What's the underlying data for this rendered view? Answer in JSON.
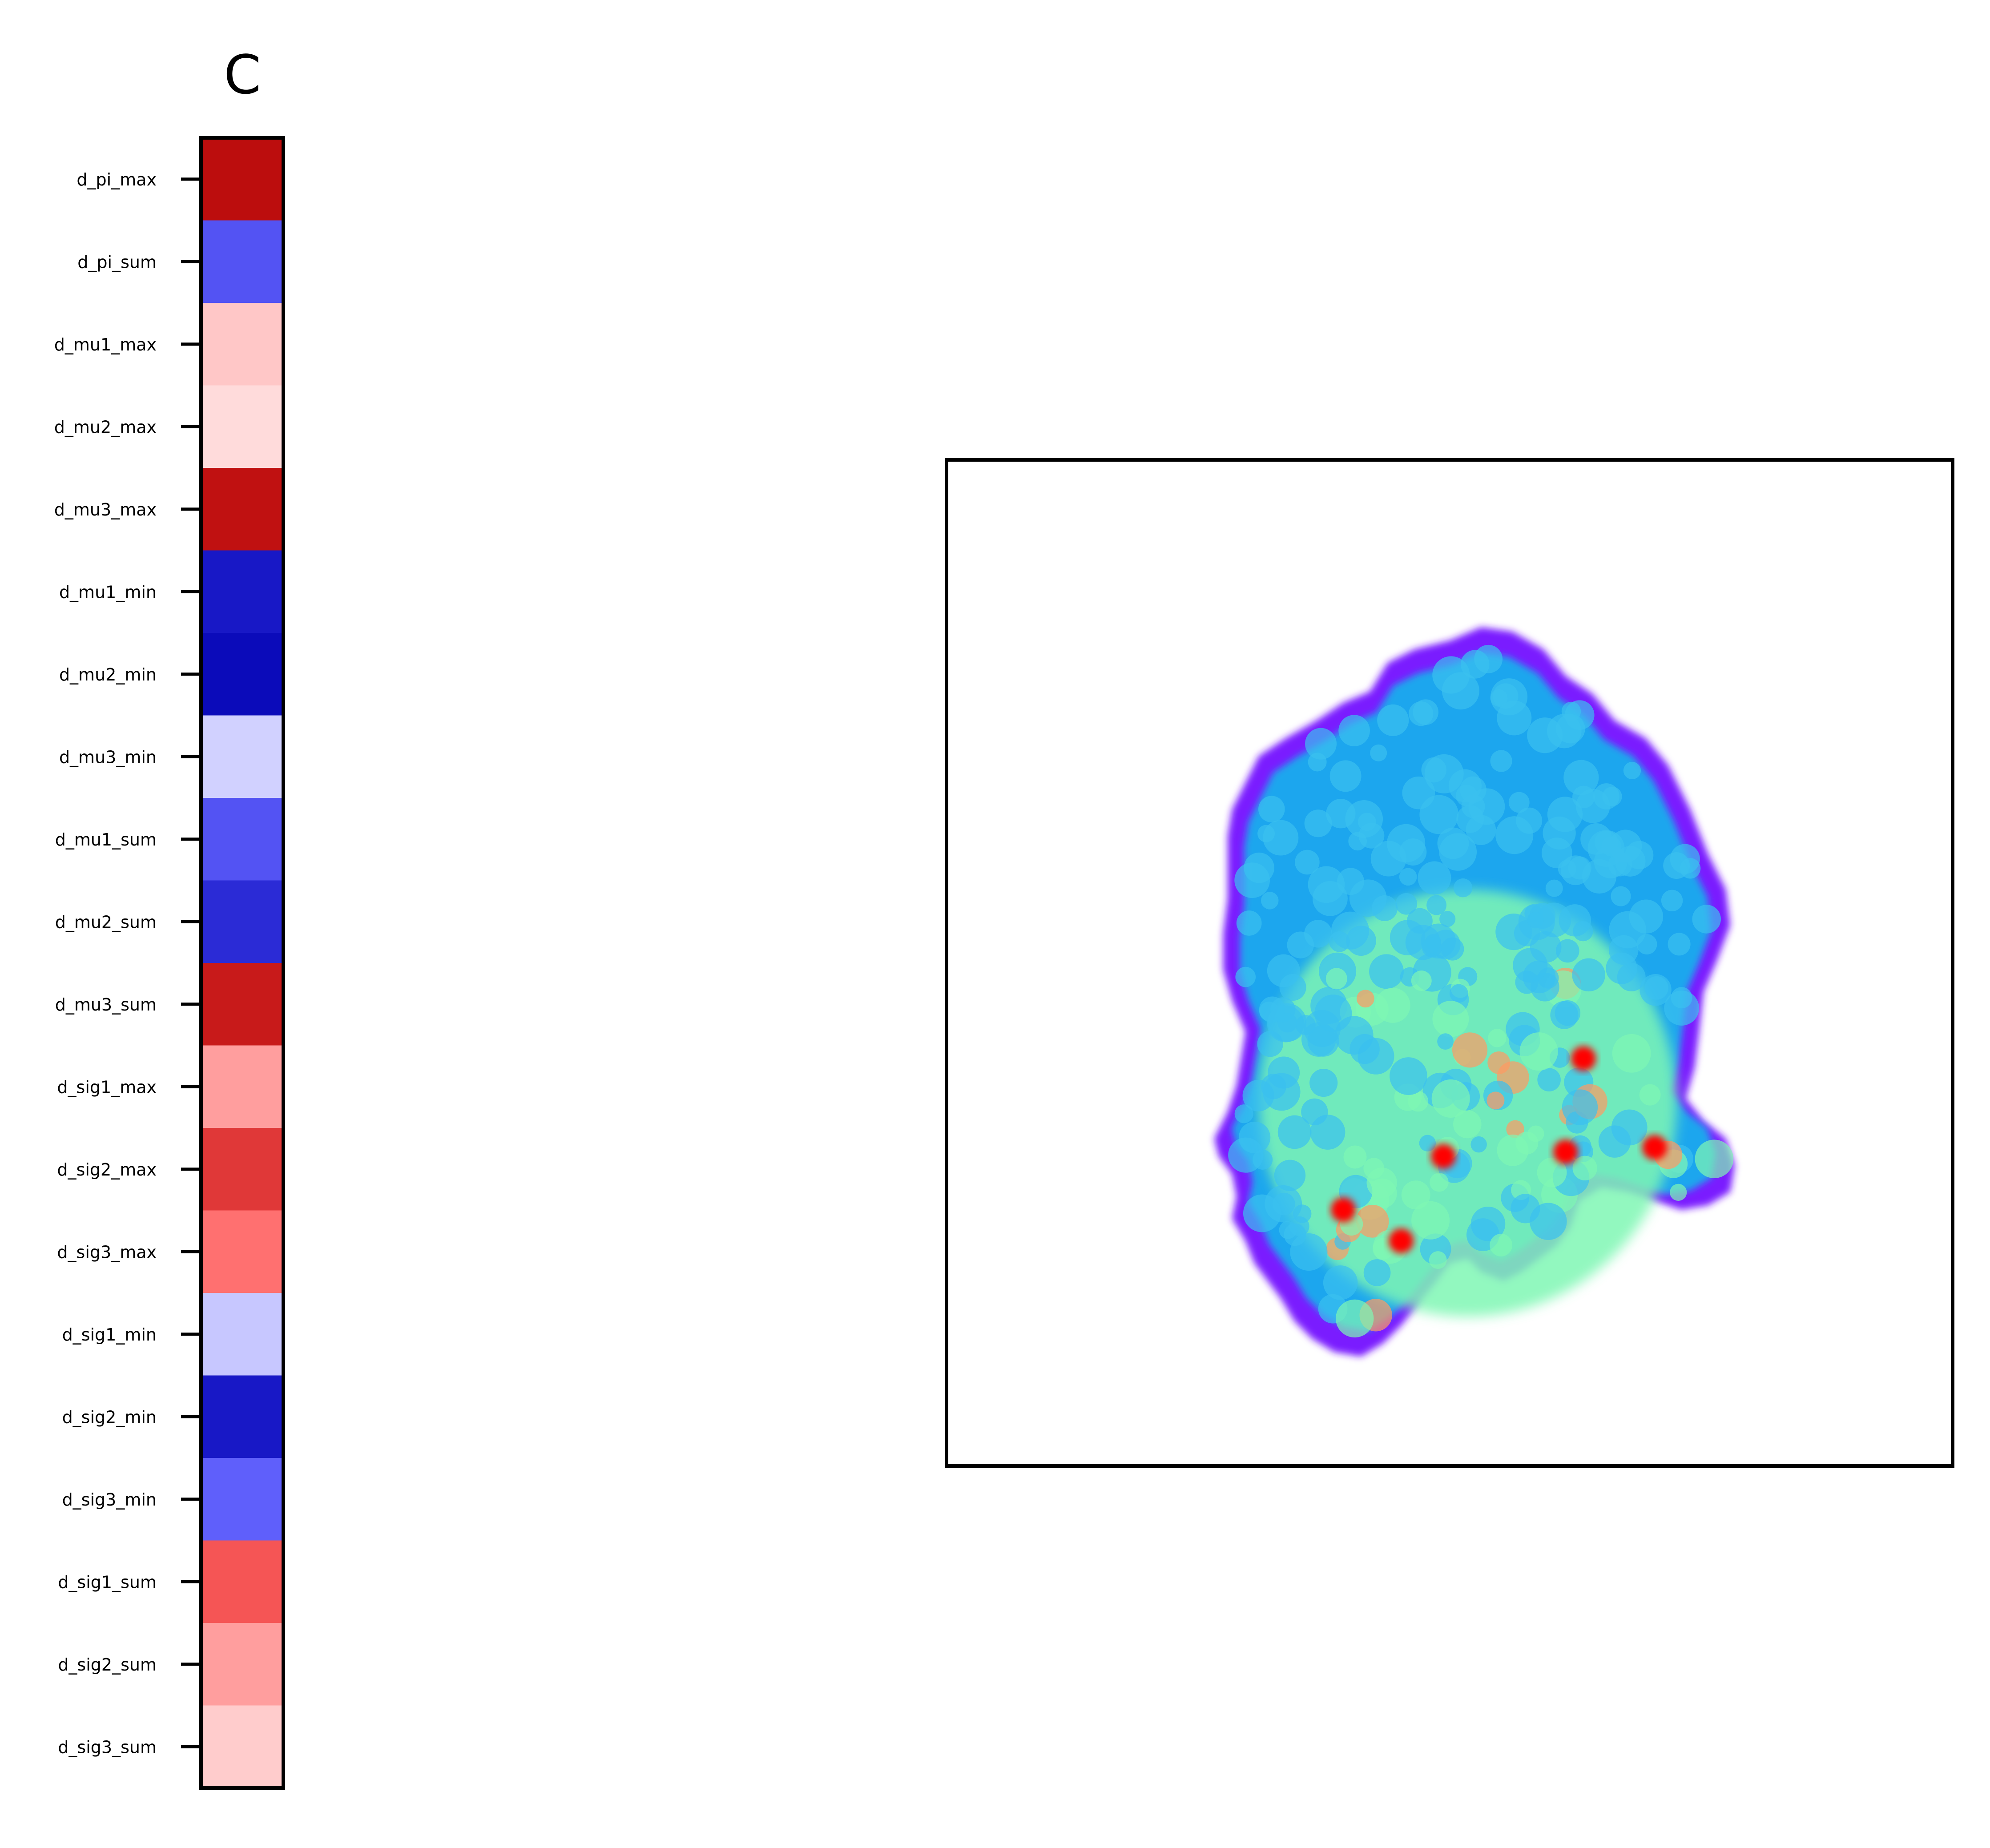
{
  "chart_data": [
    {
      "type": "heatmap",
      "title": "C",
      "columns": 1,
      "colormap": "bwr",
      "rows": [
        {
          "label": "d_pi_max",
          "value": 0.93
        },
        {
          "label": "d_pi_sum",
          "value": -0.66
        },
        {
          "label": "d_mu1_max",
          "value": 0.22
        },
        {
          "label": "d_mu2_max",
          "value": 0.14
        },
        {
          "label": "d_mu3_max",
          "value": 0.91
        },
        {
          "label": "d_mu1_min",
          "value": -0.88
        },
        {
          "label": "d_mu2_min",
          "value": -0.94
        },
        {
          "label": "d_mu3_min",
          "value": -0.18
        },
        {
          "label": "d_mu1_sum",
          "value": -0.66
        },
        {
          "label": "d_mu2_sum",
          "value": -0.8
        },
        {
          "label": "d_mu3_sum",
          "value": 0.87
        },
        {
          "label": "d_sig1_max",
          "value": 0.38
        },
        {
          "label": "d_sig2_max",
          "value": 0.75
        },
        {
          "label": "d_sig3_max",
          "value": 0.56
        },
        {
          "label": "d_sig1_min",
          "value": -0.22
        },
        {
          "label": "d_sig2_min",
          "value": -0.88
        },
        {
          "label": "d_sig3_min",
          "value": -0.62
        },
        {
          "label": "d_sig1_sum",
          "value": 0.65
        },
        {
          "label": "d_sig2_sum",
          "value": 0.38
        },
        {
          "label": "d_sig3_sum",
          "value": 0.2
        }
      ],
      "colors": {
        "positive_full": "#ff0000",
        "negative_full": "#0000ff",
        "neutral": "#ffffff",
        "frame": "#000000"
      }
    },
    {
      "type": "image",
      "description_colormap": "rainbow",
      "axes_ticks": false,
      "colors": {
        "low": "#7a1cff",
        "mid_low": "#1aa6ee",
        "mid": "#7ff7b4",
        "mid_high": "#ff9a62",
        "high": "#ff0000"
      }
    }
  ]
}
